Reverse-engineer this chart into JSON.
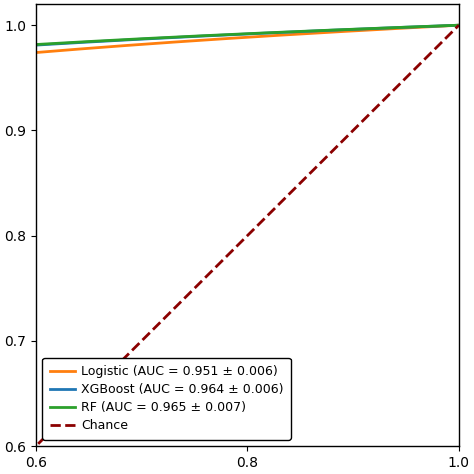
{
  "xlim": [
    0.6,
    1.0
  ],
  "ylim": [
    0.6,
    1.02
  ],
  "xgboost_auc": 0.964,
  "xgboost_std": 0.006,
  "rf_auc": 0.965,
  "rf_std": 0.007,
  "logistic_auc": 0.951,
  "logistic_std": 0.006,
  "xgboost_color": "#1f77b4",
  "rf_color": "#2ca02c",
  "logistic_color": "#ff7f0e",
  "chance_color": "#8b0000",
  "legend_labels": [
    "XGBoost (AUC = 0.964 ± 0.006)",
    "RF (AUC = 0.965 ± 0.007)",
    "Logistic (AUC = 0.951 ± 0.006)",
    "Chance"
  ],
  "xticks": [
    0.6,
    0.8,
    1.0
  ],
  "yticks": [
    0.6,
    0.7,
    0.8,
    0.9,
    1.0
  ],
  "figsize": [
    4.74,
    4.74
  ],
  "dpi": 100,
  "legend_fontsize": 9,
  "tick_fontsize": 10
}
